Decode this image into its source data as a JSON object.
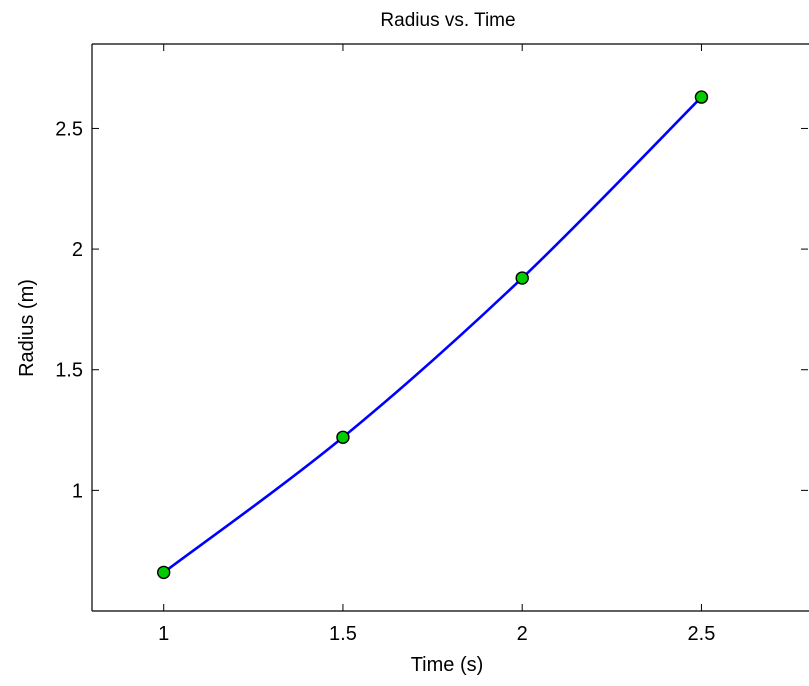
{
  "chart_data": {
    "type": "line",
    "title": "Radius vs. Time",
    "xlabel": "Time (s)",
    "ylabel": "Radius (m)",
    "xlim": [
      0.8,
      2.8
    ],
    "ylim": [
      0.5,
      2.85
    ],
    "xticks": [
      1,
      1.5,
      2,
      2.5
    ],
    "xtick_labels": [
      "1",
      "1.5",
      "2",
      "2.5"
    ],
    "yticks": [
      1,
      1.5,
      2,
      2.5
    ],
    "ytick_labels": [
      "1",
      "1.5",
      "2",
      "2.5"
    ],
    "grid": false,
    "series": [
      {
        "x": [
          1,
          1.5,
          2,
          2.5
        ],
        "y": [
          0.66,
          1.22,
          1.88,
          2.63
        ],
        "line_color": "#0000ff",
        "marker_face_color": "#00cc00",
        "marker_edge_color": "#000000",
        "smooth": true
      }
    ]
  }
}
